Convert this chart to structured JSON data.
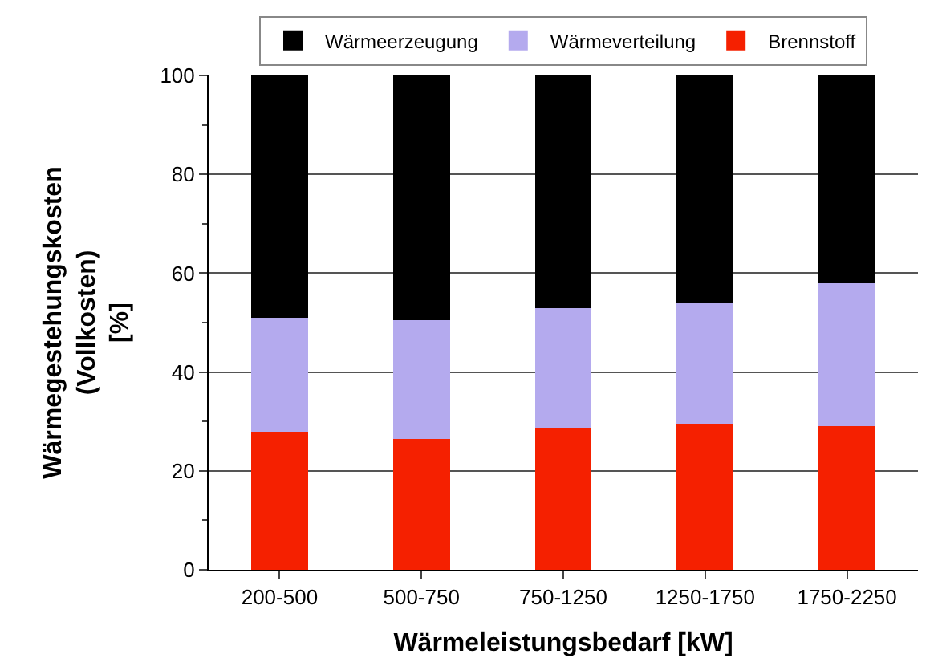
{
  "chart_data": {
    "type": "bar",
    "stacked": true,
    "xlabel": "Wärmeleistungsbedarf [kW]",
    "ylabel": "Wärmegestehungskosten\n(Vollkosten)\n[%]",
    "categories": [
      "200-500",
      "500-750",
      "750-1250",
      "1250-1750",
      "1750-2250"
    ],
    "series": [
      {
        "name": "Brennstoff",
        "color": "#f52000",
        "values": [
          28,
          26.5,
          28.5,
          29.5,
          29
        ]
      },
      {
        "name": "Wärmeverteilung",
        "color": "#b4aaee",
        "values": [
          23,
          24,
          24.5,
          24.5,
          29
        ]
      },
      {
        "name": "Wärmeerzeugung",
        "color": "#000000",
        "values": [
          49,
          49.5,
          47,
          46,
          42
        ]
      }
    ],
    "ylim": [
      0,
      100
    ],
    "yticks": [
      0,
      20,
      40,
      60,
      80,
      100
    ],
    "grid": "y",
    "legend": "top"
  }
}
